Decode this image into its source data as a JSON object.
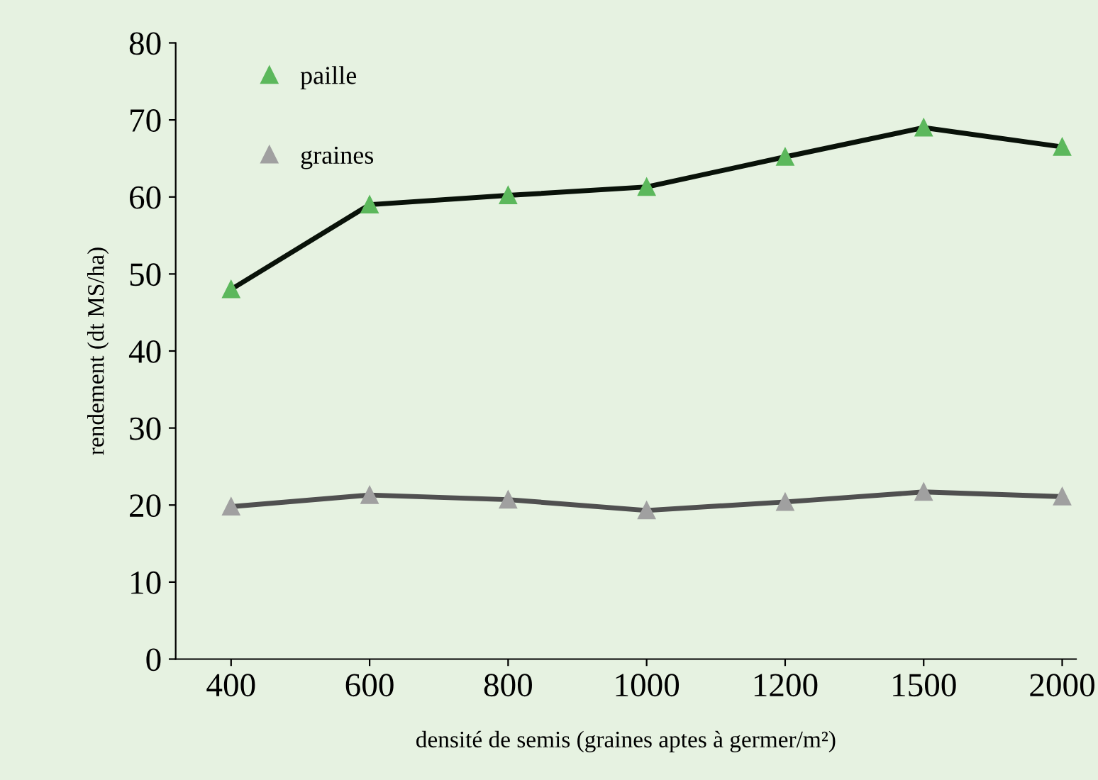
{
  "chart_data": {
    "type": "line",
    "xlabel": "densité de semis (graines aptes à germer/m²)",
    "ylabel": "rendement (dt MS/ha)",
    "categories": [
      "400",
      "600",
      "800",
      "1000",
      "1200",
      "1500",
      "2000"
    ],
    "series": [
      {
        "name": "paille",
        "color": "#5cb85c",
        "values": [
          48,
          59,
          60.2,
          61.3,
          65.2,
          69,
          66.5
        ]
      },
      {
        "name": "graines",
        "color": "#a0a0a0",
        "values": [
          19.8,
          21.3,
          20.7,
          19.3,
          20.4,
          21.7,
          21.1
        ]
      }
    ],
    "ylim": [
      0,
      80
    ],
    "yticks": [
      0,
      10,
      20,
      30,
      40,
      50,
      60,
      70,
      80
    ],
    "grid": false,
    "legend": "top left",
    "marker": "triangle",
    "line_style": "solid"
  }
}
